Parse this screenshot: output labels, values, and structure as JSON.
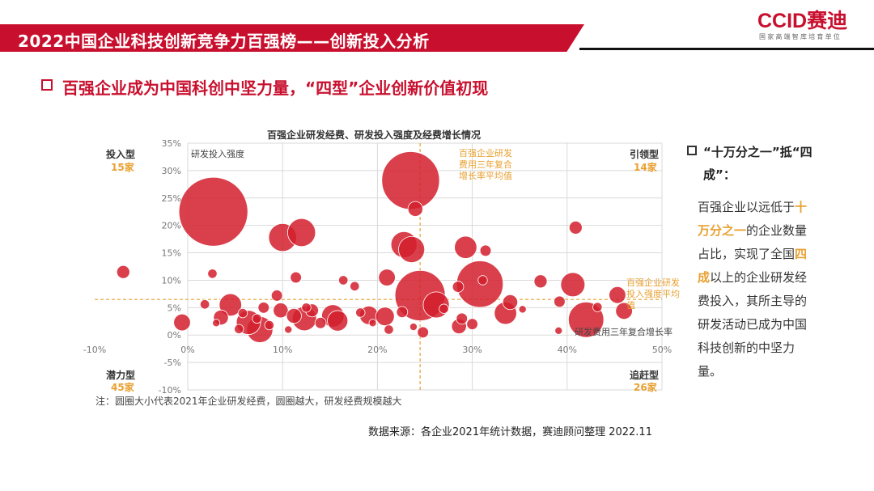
{
  "header": {
    "title": "2022中国企业科技创新竞争力百强榜——创新投入分析",
    "logo_text": "CCID赛迪",
    "logo_sub": "国家高端智库培育单位"
  },
  "section": {
    "title": "百强企业成为中国科创中坚力量，“四型”企业创新价值初现"
  },
  "chart_data": {
    "type": "scatter",
    "title": "百强企业研发经费、研发投入强度及经费增长情况",
    "xlabel": "研发费用三年复合增长率",
    "ylabel": "研发投入强度",
    "xlim": [
      -10,
      50
    ],
    "ylim": [
      -10,
      35
    ],
    "x_ticks": [
      "-10%",
      "0%",
      "10%",
      "20%",
      "30%",
      "40%",
      "50%"
    ],
    "y_ticks": [
      "-10%",
      "-5%",
      "0%",
      "5%",
      "10%",
      "15%",
      "20%",
      "25%",
      "30%",
      "35%"
    ],
    "bubble_size_meaning": "2021年企业研发经费",
    "reference_lines": {
      "x_mean": 24.5,
      "x_mean_label": "百强企业研发费用三年复合增长率平均值",
      "y_mean": 6.5,
      "y_mean_label": "百强企业研发投入强度平均值"
    },
    "quadrants": {
      "top_left": {
        "label": "投入型",
        "count": "15家"
      },
      "top_right": {
        "label": "引领型",
        "count": "14家"
      },
      "bottom_left": {
        "label": "潜力型",
        "count": "45家"
      },
      "bottom_right": {
        "label": "追赶型",
        "count": "26家"
      }
    },
    "points": [
      {
        "x": 2.7,
        "y": 22.5,
        "s": 37
      },
      {
        "x": 23.5,
        "y": 28.2,
        "s": 31
      },
      {
        "x": 24.5,
        "y": 7.2,
        "s": 27
      },
      {
        "x": 30.8,
        "y": 9.3,
        "s": 25
      },
      {
        "x": 10.0,
        "y": 17.8,
        "s": 15
      },
      {
        "x": 12.0,
        "y": 18.7,
        "s": 15
      },
      {
        "x": 22.8,
        "y": 16.5,
        "s": 14
      },
      {
        "x": 23.6,
        "y": 15.6,
        "s": 14
      },
      {
        "x": 29.3,
        "y": 16.0,
        "s": 12
      },
      {
        "x": 40.6,
        "y": 9.2,
        "s": 13
      },
      {
        "x": 42.0,
        "y": 2.8,
        "s": 19
      },
      {
        "x": 26.2,
        "y": 5.5,
        "s": 14
      },
      {
        "x": 33.5,
        "y": 4.0,
        "s": 12
      },
      {
        "x": 6.4,
        "y": 2.3,
        "s": 13
      },
      {
        "x": 7.6,
        "y": 1.0,
        "s": 14
      },
      {
        "x": 4.5,
        "y": 5.5,
        "s": 12
      },
      {
        "x": 12.3,
        "y": 3.0,
        "s": 13
      },
      {
        "x": 15.3,
        "y": 3.5,
        "s": 12
      },
      {
        "x": 15.8,
        "y": 2.6,
        "s": 11
      },
      {
        "x": 19.1,
        "y": 3.6,
        "s": 10
      },
      {
        "x": 20.8,
        "y": 3.4,
        "s": 10
      },
      {
        "x": 21.0,
        "y": 10.5,
        "s": 9
      },
      {
        "x": 46.0,
        "y": 4.4,
        "s": 9
      },
      {
        "x": 45.3,
        "y": 7.3,
        "s": 9
      },
      {
        "x": 34.0,
        "y": 6.0,
        "s": 8
      },
      {
        "x": 37.2,
        "y": 9.8,
        "s": 7
      },
      {
        "x": -6.8,
        "y": 11.5,
        "s": 7
      },
      {
        "x": -0.6,
        "y": 2.3,
        "s": 9
      },
      {
        "x": 3.5,
        "y": 3.2,
        "s": 8
      },
      {
        "x": 9.8,
        "y": 4.5,
        "s": 8
      },
      {
        "x": 11.2,
        "y": 3.5,
        "s": 8
      },
      {
        "x": 13.1,
        "y": 4.5,
        "s": 7
      },
      {
        "x": 8.0,
        "y": 5.0,
        "s": 6
      },
      {
        "x": 9.4,
        "y": 7.2,
        "s": 6
      },
      {
        "x": 11.4,
        "y": 10.5,
        "s": 6
      },
      {
        "x": 2.6,
        "y": 11.2,
        "s": 5
      },
      {
        "x": 16.4,
        "y": 10.0,
        "s": 5
      },
      {
        "x": 17.6,
        "y": 8.9,
        "s": 5
      },
      {
        "x": 24.0,
        "y": 23.0,
        "s": 8
      },
      {
        "x": 28.5,
        "y": 8.8,
        "s": 6
      },
      {
        "x": 31.1,
        "y": 10.0,
        "s": 5
      },
      {
        "x": 31.4,
        "y": 15.4,
        "s": 6
      },
      {
        "x": 40.9,
        "y": 19.6,
        "s": 7
      },
      {
        "x": 39.2,
        "y": 6.1,
        "s": 6
      },
      {
        "x": 43.2,
        "y": 5.1,
        "s": 5
      },
      {
        "x": 28.6,
        "y": 1.6,
        "s": 8
      },
      {
        "x": 28.9,
        "y": 3.0,
        "s": 6
      },
      {
        "x": 30.0,
        "y": 2.0,
        "s": 6
      },
      {
        "x": 24.8,
        "y": 0.5,
        "s": 6
      },
      {
        "x": 22.6,
        "y": 4.2,
        "s": 6
      },
      {
        "x": 21.2,
        "y": 1.0,
        "s": 5
      },
      {
        "x": 39.1,
        "y": 0.8,
        "s": 4
      },
      {
        "x": 5.8,
        "y": 4.0,
        "s": 5
      },
      {
        "x": 7.3,
        "y": 3.0,
        "s": 5
      },
      {
        "x": 14.0,
        "y": 2.2,
        "s": 6
      },
      {
        "x": 18.2,
        "y": 4.1,
        "s": 5
      },
      {
        "x": 12.5,
        "y": 5.0,
        "s": 5
      },
      {
        "x": 1.8,
        "y": 5.6,
        "s": 5
      },
      {
        "x": 23.8,
        "y": 1.5,
        "s": 4
      },
      {
        "x": 35.3,
        "y": 4.7,
        "s": 4
      },
      {
        "x": 3.0,
        "y": 2.2,
        "s": 4
      },
      {
        "x": 5.4,
        "y": 1.1,
        "s": 5
      },
      {
        "x": 8.6,
        "y": 1.8,
        "s": 5
      },
      {
        "x": 10.6,
        "y": 1.0,
        "s": 4
      },
      {
        "x": 27.0,
        "y": 4.8,
        "s": 5
      },
      {
        "x": 19.5,
        "y": 2.2,
        "s": 4
      }
    ]
  },
  "chart_labels": {
    "y_axis_note": "研发投入强度",
    "x_axis_note": "研发费用三年复合增长率",
    "x_mean_label": "百强企业研发费用三年复合增长率平均值",
    "y_mean_label": "百强企业研发投入强度平均值"
  },
  "note": "注：圆圈大小代表2021年企业研发经费，圆圈越大，研发经费规模越大",
  "source": "数据来源：各企业2021年统计数据，赛迪顾问整理 2022.11",
  "right_panel": {
    "title": "“十万分之一”抵“四成”：",
    "body_1": "百强企业以远低于",
    "highlight_1": "十万分之一",
    "body_2": "的企业数量占比，实现了全国",
    "highlight_2": "四成",
    "body_3": "以上的企业研发经费投入，其所主导的研发活动已成为中国科技创新的中坚力量。"
  },
  "colors": {
    "brand_red": "#c8102e",
    "bubble": "#d21f2d",
    "accent_orange": "#e8a030",
    "grid": "#d9d9d9"
  }
}
